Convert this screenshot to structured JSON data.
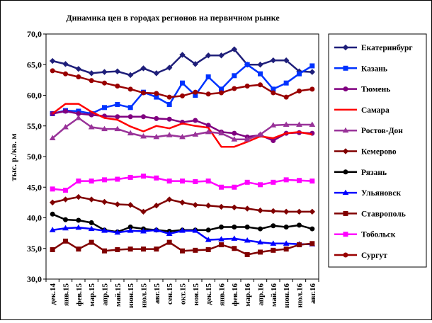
{
  "chart_data": {
    "type": "line",
    "title": "Динамика цен в городах регионов на первичном рынке",
    "ylabel": "тыс. р./кв. м",
    "xlabel": "",
    "ylim": [
      30,
      70
    ],
    "yticks": [
      "30,0",
      "35,0",
      "40,0",
      "45,0",
      "50,0",
      "55,0",
      "60,0",
      "65,0",
      "70,0"
    ],
    "ytick_values": [
      30,
      35,
      40,
      45,
      50,
      55,
      60,
      65,
      70
    ],
    "grid": false,
    "legend": "right",
    "x": [
      "дек.14",
      "янв.15",
      "фев.15",
      "мар.15",
      "апр.15",
      "май.15",
      "июн.15",
      "июл.15",
      "авг.15",
      "сен.15",
      "окт.15",
      "ноя.15",
      "дек.15",
      "янв.16",
      "фев.16",
      "мар.16",
      "апр.16",
      "май.16",
      "июн.16",
      "июл.16",
      "авг.16"
    ],
    "xlabels_shown": [
      "дек.14",
      "янв.15",
      "фев.15",
      "мар.15",
      "апр.15",
      "май.15",
      "июн.15",
      "июл.15",
      "авг.15",
      "сен.15",
      "окт.15",
      "ноя.15",
      "дек.15",
      "янв.16",
      "фев.16",
      "мар.16",
      "апр.16",
      "май.16",
      "июн.16",
      "июл.16",
      "авг.16"
    ],
    "series": [
      {
        "name": "Екатеринбург",
        "color": "#1F1F7A",
        "marker": "diamond",
        "values": [
          65.6,
          65.1,
          64.3,
          63.6,
          63.8,
          63.9,
          63.3,
          64.4,
          63.6,
          64.5,
          66.6,
          65.1,
          66.5,
          66.5,
          67.5,
          65.0,
          65.0,
          65.7,
          65.7,
          63.9,
          63.8
        ]
      },
      {
        "name": "Казань",
        "color": "#0033FF",
        "marker": "square",
        "values": [
          57.0,
          57.5,
          57.4,
          57.0,
          58.0,
          58.5,
          58.0,
          60.5,
          59.7,
          58.5,
          62.0,
          60.0,
          63.0,
          61.0,
          63.2,
          65.0,
          63.5,
          61.0,
          62.0,
          63.5,
          64.8
        ]
      },
      {
        "name": "Тюмень",
        "color": "#800080",
        "marker": "circle",
        "values": [
          57.0,
          57.4,
          57.0,
          56.8,
          56.6,
          56.5,
          56.5,
          56.5,
          56.2,
          56.1,
          55.6,
          55.9,
          55.1,
          54.0,
          53.8,
          53.2,
          53.5,
          52.6,
          53.8,
          53.9,
          53.8
        ]
      },
      {
        "name": "Самара",
        "color": "#FF0000",
        "marker": "none",
        "values": [
          57.0,
          58.6,
          58.6,
          57.3,
          56.3,
          56.0,
          54.9,
          54.1,
          55.0,
          54.6,
          55.4,
          55.0,
          54.7,
          51.6,
          51.6,
          52.4,
          53.3,
          53.0,
          53.8,
          54.0,
          53.6
        ]
      },
      {
        "name": "Ростов-Дон",
        "color": "#993399",
        "marker": "triangle",
        "values": [
          53.0,
          54.8,
          56.3,
          54.8,
          54.5,
          54.5,
          53.8,
          53.3,
          53.2,
          53.5,
          53.2,
          53.6,
          54.0,
          53.8,
          52.8,
          52.8,
          53.6,
          55.1,
          55.2,
          55.2,
          55.2
        ]
      },
      {
        "name": "Кемерово",
        "color": "#800000",
        "marker": "diamond",
        "values": [
          42.5,
          43.0,
          43.4,
          43.0,
          42.6,
          42.2,
          42.1,
          41.0,
          42.0,
          43.0,
          42.5,
          42.1,
          42.0,
          41.8,
          41.7,
          41.5,
          41.2,
          41.1,
          41.0,
          41.0,
          41.0
        ]
      },
      {
        "name": "Рязань",
        "color": "#000000",
        "marker": "circle",
        "values": [
          40.6,
          39.7,
          39.6,
          39.2,
          38.0,
          37.7,
          38.5,
          38.2,
          38.0,
          37.8,
          38.0,
          38.0,
          38.0,
          38.5,
          38.5,
          38.5,
          38.2,
          38.7,
          38.5,
          38.8,
          38.2
        ]
      },
      {
        "name": "Ульяновск",
        "color": "#0000FF",
        "marker": "triangle",
        "values": [
          38.0,
          38.3,
          38.4,
          38.2,
          37.9,
          37.6,
          37.9,
          37.8,
          38.0,
          37.4,
          37.9,
          37.9,
          36.4,
          36.5,
          36.6,
          36.3,
          36.0,
          35.8,
          35.8,
          35.7,
          35.7
        ]
      },
      {
        "name": "Ставрополь",
        "color": "#800000",
        "marker": "square",
        "values": [
          34.8,
          36.2,
          34.9,
          36.0,
          34.6,
          34.8,
          34.9,
          34.9,
          34.9,
          36.0,
          34.6,
          34.7,
          34.8,
          35.6,
          35.0,
          34.0,
          34.4,
          34.7,
          34.9,
          35.6,
          35.8
        ]
      },
      {
        "name": "Тобольск",
        "color": "#FF00FF",
        "marker": "square",
        "values": [
          44.7,
          44.5,
          46.0,
          46.0,
          46.2,
          46.3,
          46.6,
          46.8,
          46.5,
          46.0,
          46.0,
          45.9,
          46.0,
          45.0,
          45.0,
          45.8,
          45.4,
          45.8,
          46.2,
          46.1,
          46.0
        ]
      },
      {
        "name": "Сургут",
        "color": "#990000",
        "marker": "circle",
        "values": [
          64.0,
          63.5,
          63.0,
          62.4,
          62.0,
          61.5,
          61.0,
          60.4,
          60.3,
          59.7,
          59.9,
          60.5,
          60.2,
          60.4,
          61.1,
          61.5,
          61.7,
          60.4,
          59.7,
          60.7,
          61.0
        ]
      }
    ]
  }
}
